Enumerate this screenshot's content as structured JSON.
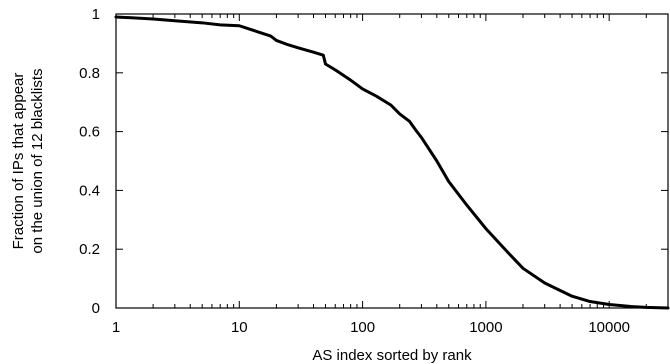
{
  "chart_data": {
    "type": "line",
    "xlabel": "AS index sorted by rank",
    "ylabel": [
      "Fraction of IPs that appear",
      "on the union of 12 blacklists"
    ],
    "x_scale": "log",
    "xlim": [
      1,
      30000
    ],
    "ylim": [
      0,
      1
    ],
    "x_ticks": [
      {
        "value": 1,
        "label": "1"
      },
      {
        "value": 10,
        "label": "10"
      },
      {
        "value": 100,
        "label": "100"
      },
      {
        "value": 1000,
        "label": "1000"
      },
      {
        "value": 10000,
        "label": "10000"
      }
    ],
    "y_ticks": [
      {
        "value": 0,
        "label": "0"
      },
      {
        "value": 0.2,
        "label": "0.2"
      },
      {
        "value": 0.4,
        "label": "0.4"
      },
      {
        "value": 0.6,
        "label": "0.6"
      },
      {
        "value": 0.8,
        "label": "0.8"
      },
      {
        "value": 1,
        "label": "1"
      }
    ],
    "grid": false,
    "legend": "none",
    "series": [
      {
        "color": "#000000",
        "points": [
          [
            1,
            0.99
          ],
          [
            2,
            0.983
          ],
          [
            3,
            0.977
          ],
          [
            5,
            0.97
          ],
          [
            7,
            0.963
          ],
          [
            10,
            0.96
          ],
          [
            14,
            0.94
          ],
          [
            18,
            0.925
          ],
          [
            20,
            0.91
          ],
          [
            25,
            0.895
          ],
          [
            30,
            0.885
          ],
          [
            40,
            0.87
          ],
          [
            48,
            0.86
          ],
          [
            50,
            0.83
          ],
          [
            60,
            0.81
          ],
          [
            80,
            0.775
          ],
          [
            100,
            0.745
          ],
          [
            130,
            0.72
          ],
          [
            170,
            0.69
          ],
          [
            200,
            0.66
          ],
          [
            240,
            0.635
          ],
          [
            270,
            0.605
          ],
          [
            300,
            0.58
          ],
          [
            400,
            0.5
          ],
          [
            500,
            0.43
          ],
          [
            700,
            0.35
          ],
          [
            1000,
            0.27
          ],
          [
            1500,
            0.19
          ],
          [
            2000,
            0.135
          ],
          [
            3000,
            0.085
          ],
          [
            5000,
            0.04
          ],
          [
            7000,
            0.022
          ],
          [
            10000,
            0.012
          ],
          [
            15000,
            0.005
          ],
          [
            20000,
            0.002
          ],
          [
            30000,
            0.0
          ]
        ]
      }
    ]
  }
}
